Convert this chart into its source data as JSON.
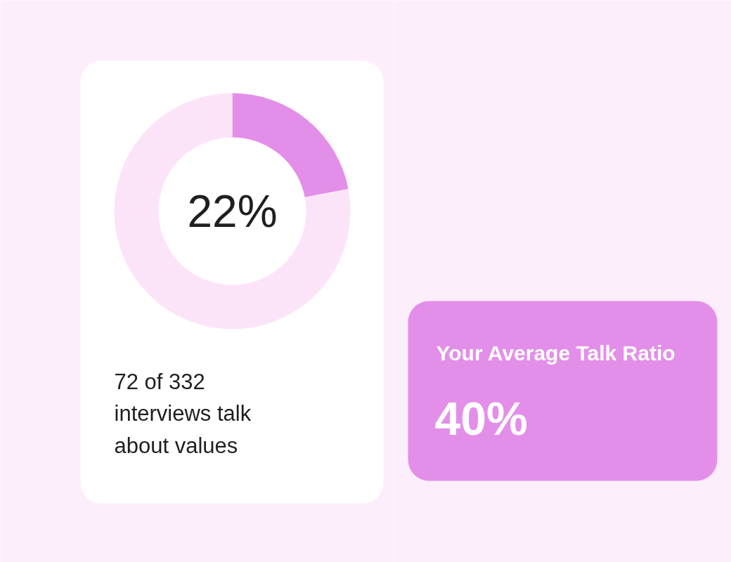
{
  "chart_data": [
    {
      "type": "donut",
      "categories": [
        null,
        null
      ],
      "values": [
        22,
        78
      ],
      "colors": [
        "#e38fe9",
        "#fce4f8"
      ],
      "value_labels": [
        "22%",
        null
      ],
      "annotations": [
        "72 of 332\ninterviews talk\nabout values"
      ]
    },
    {
      "type": "other",
      "title": "Your Average Talk Ratio",
      "annotations": [
        "40%"
      ]
    }
  ]
}
